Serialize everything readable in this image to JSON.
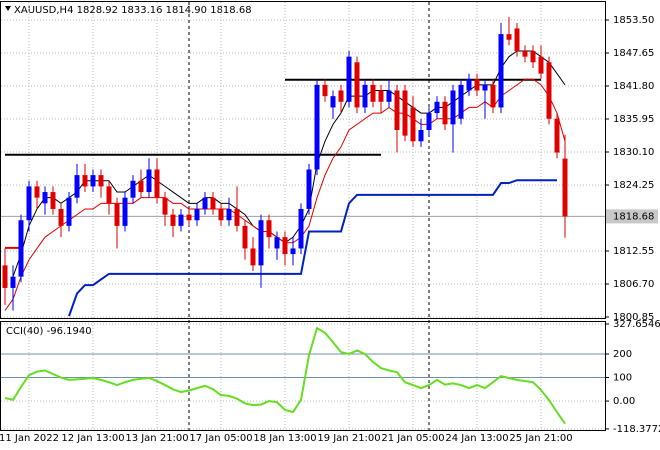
{
  "chart_data": [
    {
      "type": "candlestick",
      "title": "XAUUSD,H4 1828.92 1833.16 1814.90 1818.68",
      "x": [
        null,
        null,
        null,
        "11 Jan 2022",
        null,
        null,
        null,
        null,
        null,
        null,
        null,
        "12 Jan 13:00",
        null,
        null,
        null,
        null,
        null,
        null,
        null,
        "13 Jan 21:00",
        null,
        null,
        null,
        null,
        null,
        null,
        null,
        "17 Jan 05:00",
        null,
        null,
        null,
        null,
        null,
        null,
        null,
        "18 Jan 13:00",
        null,
        null,
        null,
        null,
        null,
        null,
        null,
        "19 Jan 21:00",
        null,
        null,
        null,
        null,
        null,
        null,
        null,
        "21 Jan 05:00",
        null,
        null,
        null,
        null,
        null,
        null,
        null,
        "24 Jan 13:00",
        null,
        null,
        null,
        null,
        null,
        null,
        null,
        "25 Jan 21:00",
        null,
        null,
        null
      ],
      "open": [
        1810,
        1806,
        1808,
        1818,
        1824,
        1821,
        1823,
        1820,
        1817,
        1822,
        1826,
        1824,
        1826,
        1824,
        1821,
        1817,
        1822,
        1825,
        1823,
        1827,
        1822,
        1819,
        1817,
        1819,
        1818,
        1820,
        1822,
        1820,
        1818,
        1820,
        1817,
        1813,
        1810,
        1818,
        1813,
        1815,
        1812,
        1813,
        1820,
        1827,
        1842,
        1838,
        1841,
        1839,
        1846,
        1838,
        1842,
        1841,
        1839,
        1841,
        1841,
        1838,
        1832,
        1834,
        1837,
        1839,
        1835,
        1836,
        1841,
        1843,
        1841,
        1842,
        1838,
        1851,
        1852,
        1848,
        1848,
        1847,
        1846,
        1836,
        1828.92
      ],
      "high": [
        1813,
        1810,
        1819,
        1825,
        1825,
        1824,
        1824,
        1821,
        1823,
        1828,
        1828,
        1827,
        1827,
        1825,
        1822,
        1823,
        1826,
        1827,
        1829,
        1829,
        1823,
        1820,
        1820,
        1820,
        1821,
        1823,
        1823,
        1821,
        1822,
        1824,
        1818,
        1815,
        1819,
        1819,
        1816,
        1816,
        1815,
        1821,
        1828,
        1843,
        1843,
        1841,
        1842,
        1848,
        1847,
        1843,
        1843,
        1842,
        1843,
        1842,
        1842,
        1840,
        1836,
        1838,
        1840,
        1840,
        1842,
        1843,
        1844,
        1844,
        1843,
        1843,
        1853,
        1854,
        1853,
        1849,
        1849,
        1849,
        1847,
        1837,
        1833.16
      ],
      "low": [
        1803,
        1802,
        1807,
        1816,
        1820,
        1819,
        1819,
        1815,
        1816,
        1821,
        1823,
        1823,
        1822,
        1819,
        1813,
        1816,
        1821,
        1822,
        1822,
        1821,
        1817,
        1815,
        1816,
        1817,
        1817,
        1819,
        1819,
        1817,
        1817,
        1816,
        1811,
        1809,
        1806,
        1813,
        1811,
        1810,
        1810,
        1812,
        1819,
        1826,
        1839,
        1836,
        1837,
        1838,
        1837,
        1837,
        1838,
        1837,
        1838,
        1830,
        1832,
        1831,
        1831,
        1833,
        1836,
        1834,
        1830,
        1835,
        1840,
        1840,
        1836,
        1837,
        1837,
        1849,
        1847,
        1846,
        1845,
        1843,
        1835,
        1829,
        1814.9
      ],
      "close": [
        1806,
        1808,
        1818,
        1824,
        1822,
        1823,
        1820,
        1817,
        1822,
        1826,
        1824,
        1826,
        1824,
        1821,
        1817,
        1822,
        1825,
        1823,
        1827,
        1822,
        1819,
        1817,
        1819,
        1818,
        1820,
        1822,
        1820,
        1818,
        1820,
        1817,
        1813,
        1810,
        1818,
        1815,
        1815,
        1812,
        1813,
        1820,
        1827,
        1842,
        1840,
        1840,
        1839,
        1847,
        1838,
        1842,
        1839,
        1839,
        1841,
        1834,
        1833,
        1832,
        1834,
        1837,
        1839,
        1835,
        1841,
        1842,
        1843,
        1841,
        1842,
        1838,
        1851,
        1850,
        1848,
        1847,
        1846,
        1844,
        1836,
        1830,
        1818.68
      ],
      "up_color": "#0000ff",
      "down_color": "#e00000",
      "series": [
        {
          "color": "#000000",
          "values": [
            null,
            1808,
            1812,
            1817,
            1820,
            1822,
            1822,
            1821,
            1822,
            1823,
            1825,
            1825,
            1825,
            1825,
            1823,
            1823,
            1824,
            1825,
            1826,
            1825,
            1824,
            1823,
            1822,
            1821,
            1821,
            1822,
            1822,
            1821,
            1821,
            1820,
            1819,
            1817,
            1816,
            1816,
            1815,
            1814,
            1815,
            1817,
            1820,
            1828,
            1832,
            1835,
            1837,
            1840,
            1840,
            1840,
            1841,
            1841,
            1841,
            1840,
            1839,
            1838,
            1837,
            1837,
            1838,
            1838,
            1839,
            1840,
            1841,
            1842,
            1842,
            1842,
            1845,
            1847,
            1848,
            1848,
            1848,
            1847,
            1846,
            1844,
            1842
          ]
        },
        {
          "color": "#e00000",
          "values": [
            1802,
            1804,
            1808,
            1811,
            1813,
            1815,
            1816,
            1817,
            1818,
            1819,
            1820,
            1820,
            1821,
            1821,
            1821,
            1821,
            1821,
            1822,
            1822,
            1822,
            1822,
            1821,
            1821,
            1820,
            1820,
            1820,
            1820,
            1820,
            1820,
            1819,
            1818,
            1817,
            1816,
            1816,
            1815,
            1814,
            1814,
            1815,
            1817,
            1822,
            1826,
            1829,
            1831,
            1834,
            1835,
            1836,
            1837,
            1837,
            1838,
            1837,
            1837,
            1836,
            1835,
            1835,
            1836,
            1836,
            1836,
            1837,
            1838,
            1838,
            1839,
            1838,
            1840,
            1841,
            1842,
            1843,
            1843,
            1842,
            1840,
            1837,
            1832
          ]
        },
        {
          "color": "#0020c0",
          "values": [
            null,
            null,
            null,
            null,
            null,
            null,
            null,
            null,
            1801,
            1805,
            1806.5,
            1806.5,
            1807.5,
            1808.5,
            1808.5,
            1808.5,
            1808.5,
            1808.5,
            1808.5,
            1808.5,
            1808.5,
            1808.5,
            1808.5,
            1808.5,
            1808.5,
            1808.5,
            1808.5,
            1808.5,
            1808.5,
            1808.5,
            1808.5,
            1808.5,
            1808.5,
            1808.5,
            1808.5,
            1808.5,
            1808.5,
            1808.5,
            1816,
            1816,
            1816,
            1816,
            1816,
            1821,
            1822.5,
            1822.5,
            1822.5,
            1822.5,
            1822.5,
            1822.5,
            1822.5,
            1822.5,
            1822.5,
            1822.5,
            1822.5,
            1822.5,
            1822.5,
            1822.5,
            1822.5,
            1822.5,
            1822.5,
            1822.5,
            1824.6,
            1824.6,
            1825.1,
            1825.1,
            1825.1,
            1825.1,
            1825.1,
            1825.1,
            null
          ]
        }
      ],
      "levels": [
        {
          "value": 1829.6,
          "from": 0,
          "to": 47,
          "color": "#000000"
        },
        {
          "value": 1842.9,
          "from": 35,
          "to": 67,
          "color": "#000000"
        },
        {
          "value": 1813.1,
          "from": 0,
          "to": 2,
          "color": "#e00000"
        }
      ],
      "ylim": [
        1800.67,
        1856.69
      ],
      "yticks": [
        {
          "value": 1853.5,
          "label": "1853.50"
        },
        1847.65,
        {
          "value": 1841.8,
          "label": "1841.80"
        },
        1835.95,
        {
          "value": 1830.1,
          "label": "1830.10"
        },
        1824.25,
        1812.55,
        {
          "value": 1806.7,
          "label": "1806.70"
        },
        1800.85
      ],
      "last_price": 1818.68,
      "grid": true
    },
    {
      "type": "line",
      "title": "CCI(40) -96.1940",
      "color": "#66dd22",
      "values": [
        13,
        5,
        60,
        110,
        125,
        130,
        115,
        100,
        90,
        92,
        95,
        98,
        90,
        80,
        68,
        80,
        90,
        95,
        98,
        85,
        68,
        50,
        38,
        45,
        55,
        65,
        50,
        25,
        22,
        10,
        -10,
        -17,
        -15,
        0,
        -5,
        -38,
        -47,
        5,
        195,
        310,
        290,
        250,
        208,
        200,
        215,
        200,
        166,
        140,
        130,
        123,
        80,
        68,
        55,
        68,
        90,
        70,
        75,
        68,
        55,
        68,
        55,
        80,
        106,
        98,
        90,
        85,
        80,
        47,
        4,
        -47,
        -96.194
      ],
      "levels": [
        200,
        100
      ],
      "ylim": [
        -123,
        336
      ],
      "yticks": [
        327.6546,
        200,
        100,
        {
          "value": 0,
          "label": "0.00"
        },
        -118.3772
      ],
      "grid": true
    }
  ]
}
